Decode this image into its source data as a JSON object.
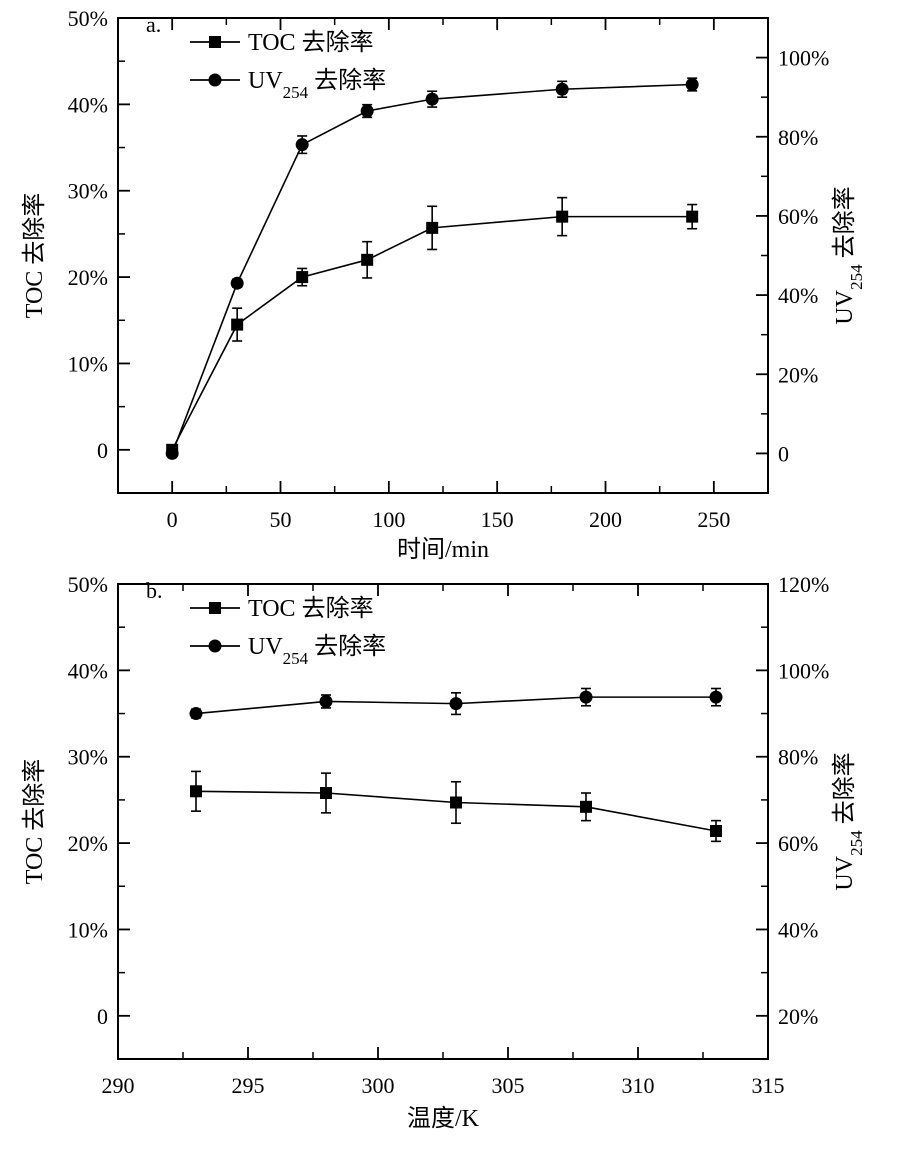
{
  "chart_data": [
    {
      "type": "line",
      "panel_label": "a.",
      "xlabel": "时间/min",
      "ylabel_left": "TOC 去除率",
      "ylabel_right": {
        "base": "UV",
        "sub": "254",
        "rest": " 去除率"
      },
      "xlim": [
        -25,
        275
      ],
      "xticks": [
        0,
        50,
        100,
        150,
        200,
        250
      ],
      "xtick_labels": [
        "0",
        "50",
        "100",
        "150",
        "200",
        "250"
      ],
      "ylim_left": [
        -5,
        50
      ],
      "yticks_left": [
        0,
        10,
        20,
        30,
        40,
        50
      ],
      "ytick_labels_left": [
        "0",
        "10%",
        "20%",
        "30%",
        "40%",
        "50%"
      ],
      "ylim_right": [
        -10,
        110
      ],
      "yticks_right": [
        0,
        20,
        40,
        60,
        80,
        100
      ],
      "ytick_labels_right": [
        "0",
        "20%",
        "40%",
        "60%",
        "80%",
        "100%"
      ],
      "legend_position": "top-left",
      "series": [
        {
          "name": "TOC 去除率",
          "legend": {
            "base": "TOC 去除率",
            "sub": "",
            "rest": ""
          },
          "axis": "left",
          "marker": "square",
          "x": [
            0,
            30,
            60,
            90,
            120,
            180,
            240
          ],
          "y": [
            0,
            14.5,
            20,
            22,
            25.7,
            27,
            27
          ],
          "err": [
            0.4,
            1.9,
            1.0,
            2.1,
            2.5,
            2.2,
            1.4
          ]
        },
        {
          "name": "UV254 去除率",
          "legend": {
            "base": "UV",
            "sub": "254",
            "rest": " 去除率"
          },
          "axis": "right",
          "marker": "circle",
          "x": [
            0,
            30,
            60,
            90,
            120,
            180,
            240
          ],
          "y": [
            0,
            43,
            78,
            86.5,
            89.5,
            92,
            93.2
          ],
          "err": [
            0.5,
            1.0,
            2.2,
            1.6,
            2.0,
            2.0,
            1.6
          ]
        }
      ]
    },
    {
      "type": "line",
      "panel_label": "b.",
      "xlabel": "温度/K",
      "ylabel_left": "TOC 去除率",
      "ylabel_right": {
        "base": "UV",
        "sub": "254",
        "rest": " 去除率"
      },
      "xlim": [
        290,
        315
      ],
      "xticks": [
        290,
        295,
        300,
        305,
        310,
        315
      ],
      "xtick_labels": [
        "290",
        "295",
        "300",
        "305",
        "310",
        "315"
      ],
      "ylim_left": [
        -5,
        50
      ],
      "yticks_left": [
        0,
        10,
        20,
        30,
        40,
        50
      ],
      "ytick_labels_left": [
        "0",
        "10%",
        "20%",
        "30%",
        "40%",
        "50%"
      ],
      "ylim_right": [
        10,
        120
      ],
      "yticks_right": [
        20,
        40,
        60,
        80,
        100,
        120
      ],
      "ytick_labels_right": [
        "20%",
        "40%",
        "60%",
        "80%",
        "100%",
        "120%"
      ],
      "legend_position": "top-left",
      "series": [
        {
          "name": "TOC 去除率",
          "legend": {
            "base": "TOC 去除率",
            "sub": "",
            "rest": ""
          },
          "axis": "left",
          "marker": "square",
          "x": [
            293,
            298,
            303,
            308,
            313
          ],
          "y": [
            26,
            25.8,
            24.7,
            24.2,
            21.4
          ],
          "err": [
            2.3,
            2.3,
            2.4,
            1.6,
            1.2
          ]
        },
        {
          "name": "UV254 去除率",
          "legend": {
            "base": "UV",
            "sub": "254",
            "rest": " 去除率"
          },
          "axis": "right",
          "marker": "circle",
          "x": [
            293,
            298,
            303,
            308,
            313
          ],
          "y": [
            90,
            92.8,
            92.3,
            93.8,
            93.8
          ],
          "err": [
            1.0,
            1.5,
            2.5,
            2.0,
            2.0
          ]
        }
      ]
    }
  ]
}
